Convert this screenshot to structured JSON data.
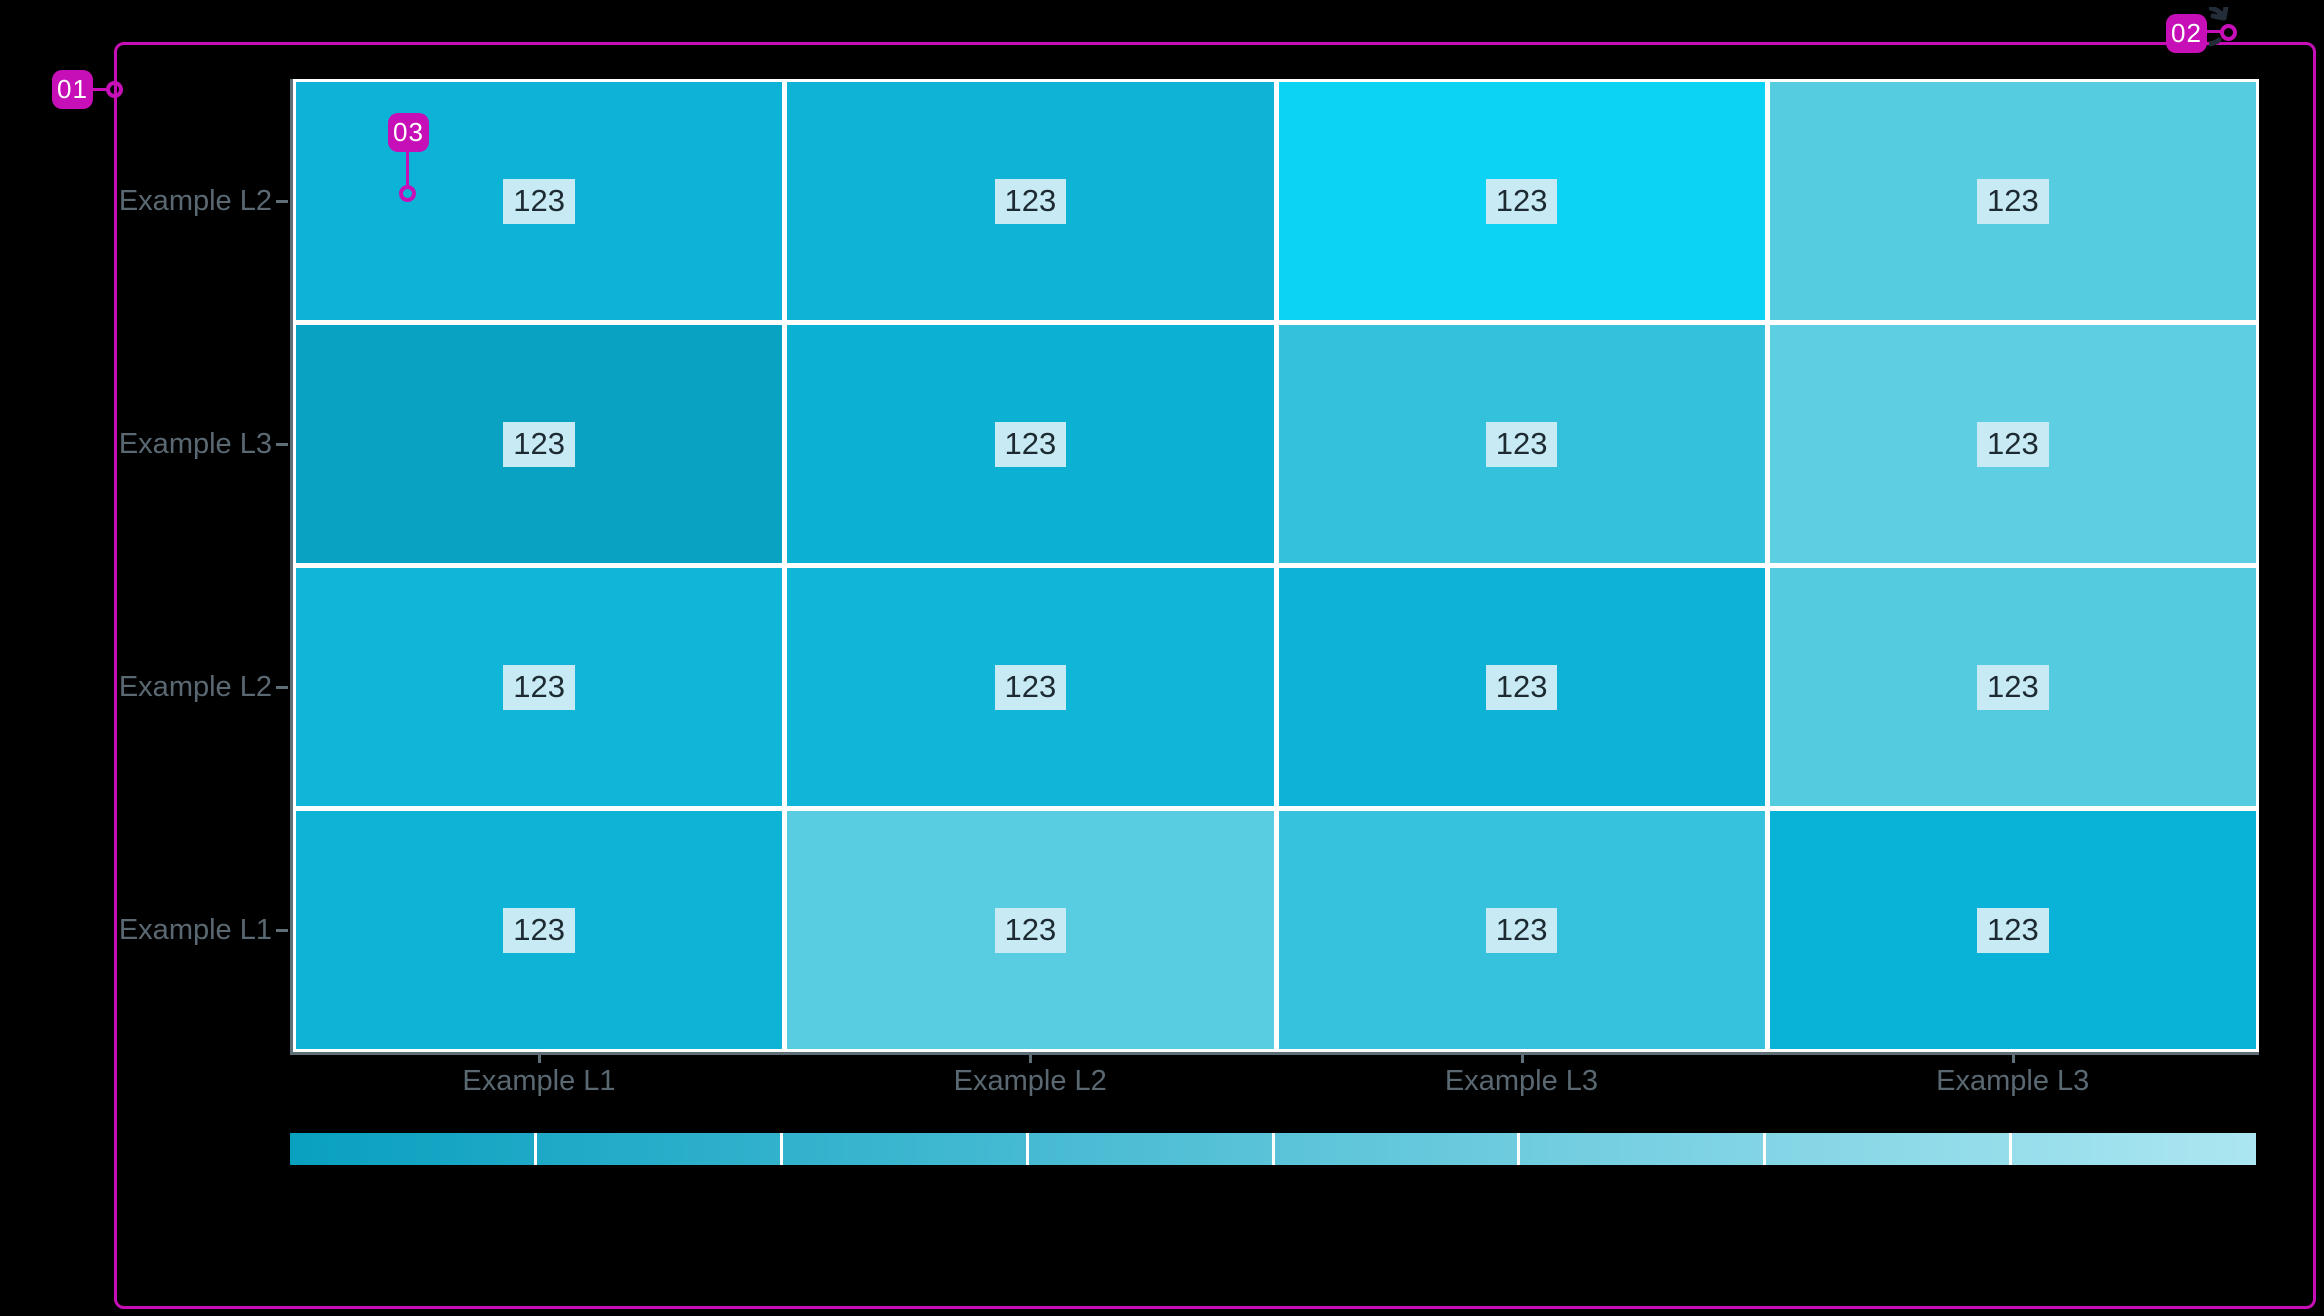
{
  "page": {
    "background": "#000000",
    "frame_color": "#C60FB6"
  },
  "annotations": {
    "color": "#C60FB6",
    "items": [
      {
        "label": "01"
      },
      {
        "label": "02"
      },
      {
        "label": "03"
      }
    ],
    "icons": [
      "rotate-arrow-icon"
    ]
  },
  "chart_data": {
    "type": "heatmap",
    "title": "",
    "xlabel": "",
    "ylabel": "",
    "rows": [
      "Example L2",
      "Example L3",
      "Example L2",
      "Example L1"
    ],
    "columns": [
      "Example L1",
      "Example L2",
      "Example L3",
      "Example L3"
    ],
    "values": [
      [
        123,
        123,
        123,
        123
      ],
      [
        123,
        123,
        123,
        123
      ],
      [
        123,
        123,
        123,
        123
      ],
      [
        123,
        123,
        123,
        123
      ]
    ],
    "cell_value_text": "123",
    "cell_colors": [
      [
        "#0CB3D6",
        "#0EB3D5",
        "#0CD3F4",
        "#55CCE0"
      ],
      [
        "#09A2C2",
        "#0BB0D2",
        "#33C1DC",
        "#5ECFE2"
      ],
      [
        "#10B6D7",
        "#10B6D7",
        "#0DB3D6",
        "#55CBDF"
      ],
      [
        "#0DB4D6",
        "#58CDE2",
        "#36C2DC",
        "#09B3D7"
      ]
    ],
    "grid_gap_color": "#FFFFFF",
    "axis_line_color": "#5E6F78",
    "axis_label_color": "#5A6872",
    "value_label_bg": "#C7EAF4",
    "value_label_color": "#1E2A32",
    "grid": "white cell separators, gray domain lines left and bottom",
    "legend": {
      "position": "bottom",
      "style": "gradient-bar",
      "segments": 8,
      "color_from": "#09A0C0",
      "color_to": "#ABE6F1"
    }
  }
}
